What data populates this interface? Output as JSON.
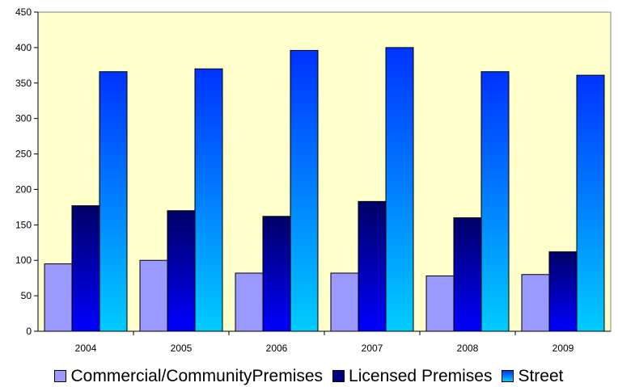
{
  "chart_data": {
    "type": "bar",
    "title": "",
    "xlabel": "",
    "ylabel": "",
    "categories": [
      "2004",
      "2005",
      "2006",
      "2007",
      "2008",
      "2009"
    ],
    "ylim": [
      0,
      450
    ],
    "yticks": [
      "0",
      "50",
      "100",
      "150",
      "200",
      "250",
      "300",
      "350",
      "400",
      "450"
    ],
    "grid": false,
    "legend_position": "bottom",
    "plot_background": "#ffffcc",
    "series": [
      {
        "name": "Commercial/CommunityPremises",
        "values": [
          95,
          100,
          82,
          82,
          78,
          80
        ],
        "color": "#9999ff",
        "style": "flat"
      },
      {
        "name": "Licensed Premises",
        "values": [
          177,
          170,
          162,
          183,
          160,
          112
        ],
        "color": "#000080",
        "style": "gradient"
      },
      {
        "name": "Street",
        "values": [
          366,
          370,
          396,
          400,
          366,
          361
        ],
        "color": "#00ccff",
        "style": "gradient"
      }
    ]
  }
}
